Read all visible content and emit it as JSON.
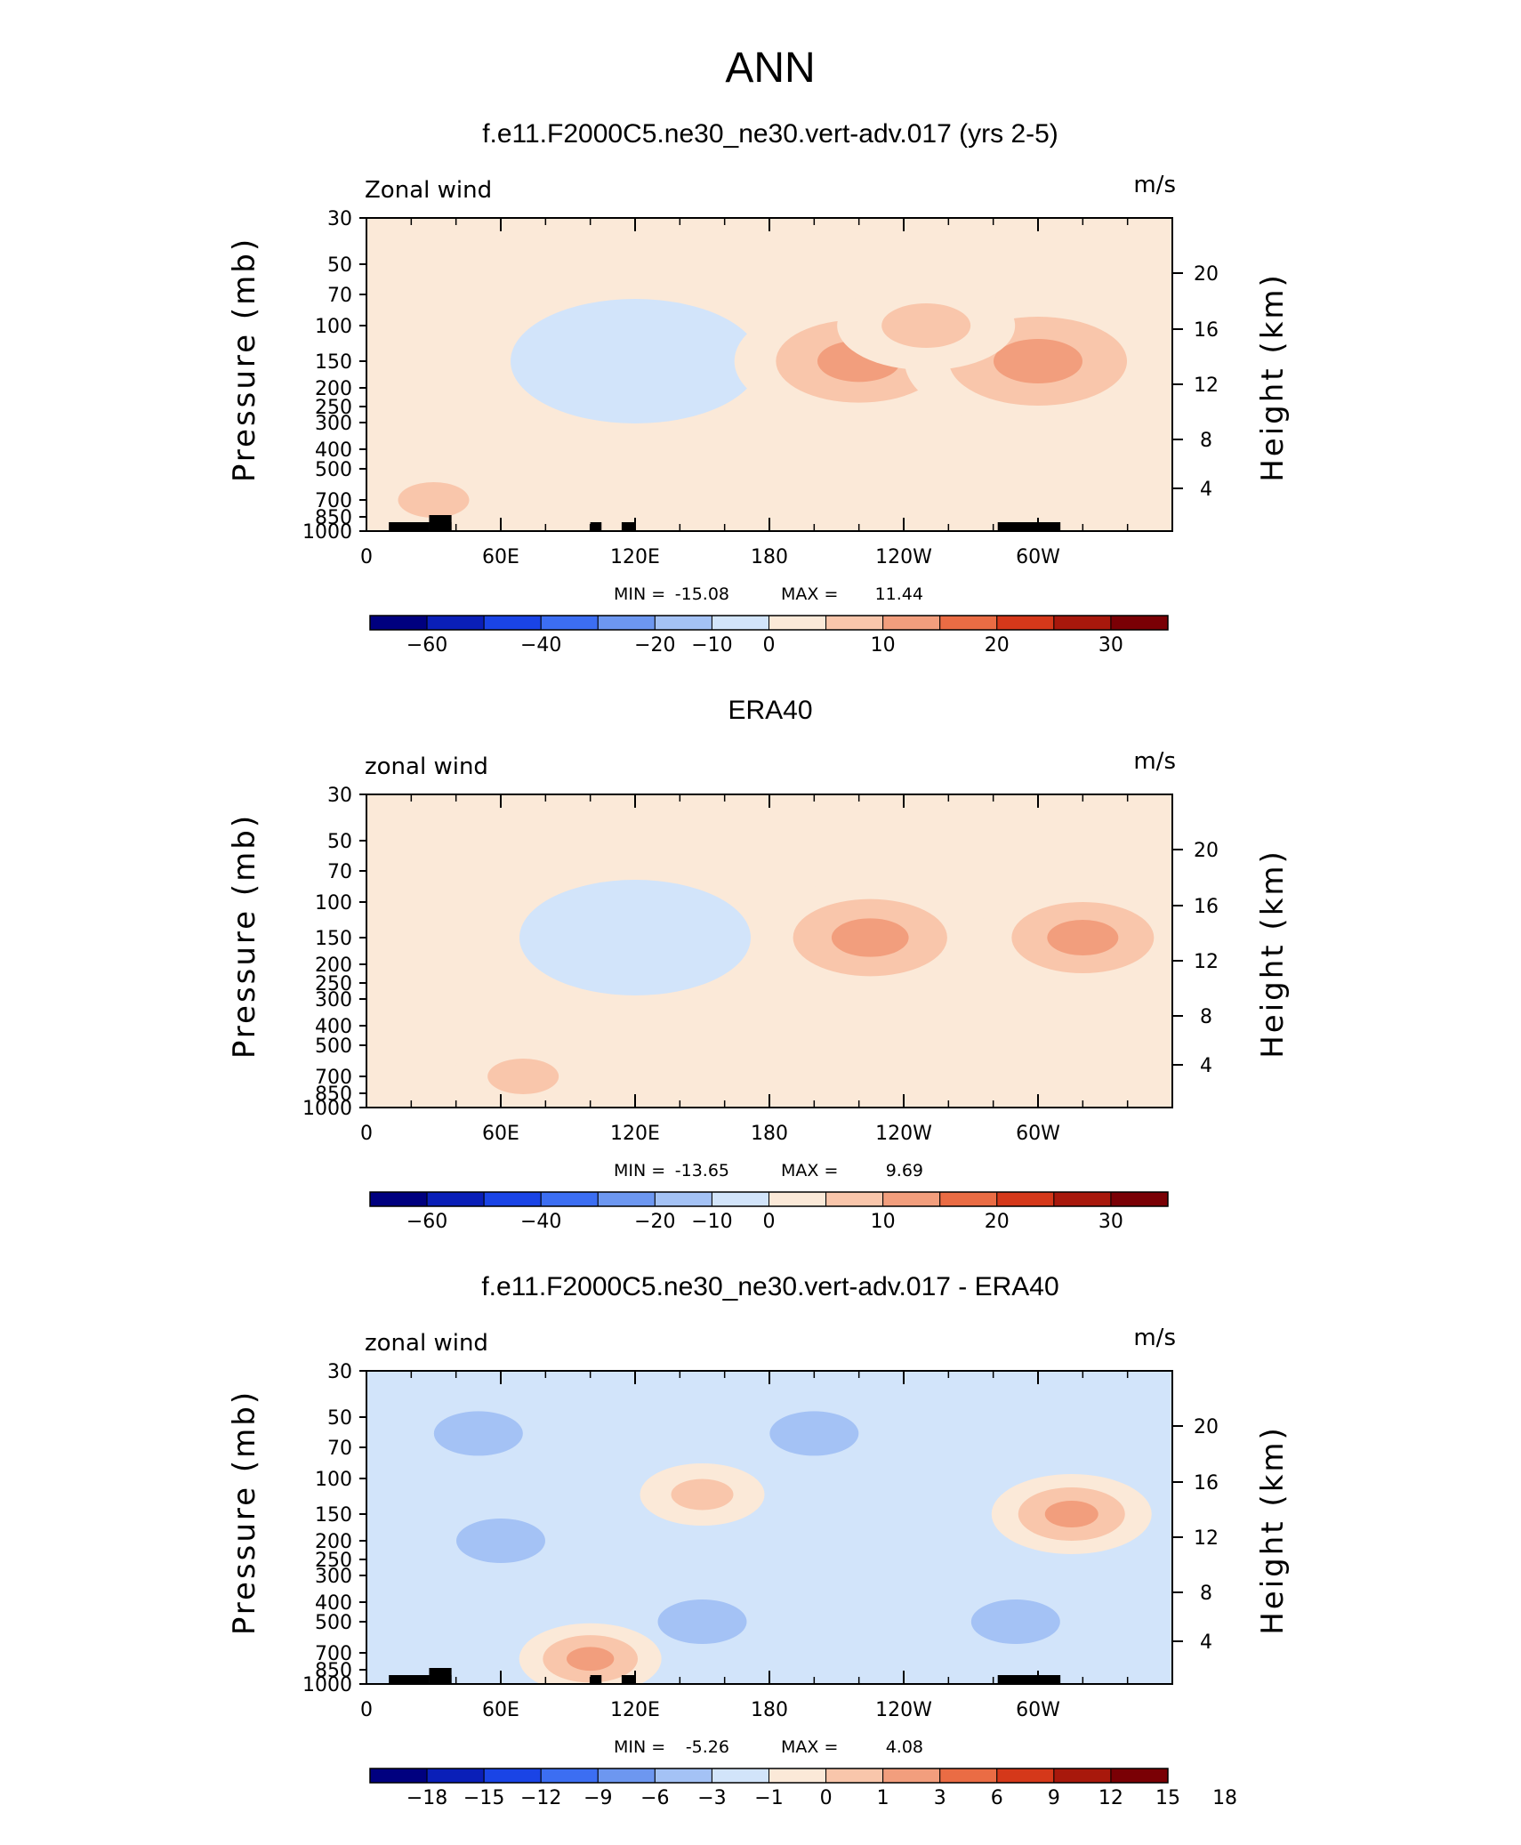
{
  "main_title": "ANN",
  "colors": {
    "diverging": [
      "#00007f",
      "#0a1fb8",
      "#1a44e6",
      "#3c6ef2",
      "#6d97f0",
      "#a4c2f5",
      "#d2e4fa",
      "#fbe9d8",
      "#f9c6ab",
      "#f29e7d",
      "#ea6c44",
      "#d5381a",
      "#a8180c",
      "#7a0005"
    ]
  },
  "chart_data": [
    {
      "type": "heatmap",
      "title": "f.e11.F2000C5.ne30_ne30.vert-adv.017 (yrs 2-5)",
      "left_label": "Zonal wind",
      "right_label": "m/s",
      "ylabel": "Pressure (mb)",
      "y2label": "Height (km)",
      "x_ticks": [
        "0",
        "60E",
        "120E",
        "180",
        "120W",
        "60W"
      ],
      "y_ticks": [
        "30",
        "50",
        "70",
        "100",
        "150",
        "200",
        "250",
        "300",
        "400",
        "500",
        "700",
        "850",
        "1000"
      ],
      "y2_ticks": [
        "20",
        "16",
        "12",
        "8",
        "4"
      ],
      "stats": {
        "min_label": "MIN =",
        "min": "-15.08",
        "max_label": "MAX =",
        "max": "11.44"
      },
      "colorbar_labels": [
        "−60",
        "−40",
        "−20",
        "−10",
        "0",
        "10",
        "20",
        "30"
      ],
      "features": [
        {
          "x": 120,
          "p": 150,
          "value": -8
        },
        {
          "x": 220,
          "p": 150,
          "value": 8
        },
        {
          "x": 300,
          "p": 150,
          "value": 9
        },
        {
          "x": 250,
          "p": 100,
          "value": 4
        },
        {
          "x": 30,
          "p": 700,
          "value": 2
        }
      ]
    },
    {
      "type": "heatmap",
      "title": "ERA40",
      "left_label": "zonal wind",
      "right_label": "m/s",
      "ylabel": "Pressure (mb)",
      "y2label": "Height (km)",
      "x_ticks": [
        "0",
        "60E",
        "120E",
        "180",
        "120W",
        "60W"
      ],
      "y_ticks": [
        "30",
        "50",
        "70",
        "100",
        "150",
        "200",
        "250",
        "300",
        "400",
        "500",
        "700",
        "850",
        "1000"
      ],
      "y2_ticks": [
        "20",
        "16",
        "12",
        "8",
        "4"
      ],
      "stats": {
        "min_label": "MIN =",
        "min": "-13.65",
        "max_label": "MAX =",
        "max": "9.69"
      },
      "colorbar_labels": [
        "−60",
        "−40",
        "−20",
        "−10",
        "0",
        "10",
        "20",
        "30"
      ],
      "features": [
        {
          "x": 120,
          "p": 150,
          "value": -7
        },
        {
          "x": 225,
          "p": 150,
          "value": 7
        },
        {
          "x": 320,
          "p": 150,
          "value": 6
        },
        {
          "x": 70,
          "p": 700,
          "value": 2
        }
      ]
    },
    {
      "type": "heatmap",
      "title": "f.e11.F2000C5.ne30_ne30.vert-adv.017 - ERA40",
      "left_label": "zonal wind",
      "right_label": "m/s",
      "ylabel": "Pressure (mb)",
      "y2label": "Height (km)",
      "x_ticks": [
        "0",
        "60E",
        "120E",
        "180",
        "120W",
        "60W"
      ],
      "y_ticks": [
        "30",
        "50",
        "70",
        "100",
        "150",
        "200",
        "250",
        "300",
        "400",
        "500",
        "700",
        "850",
        "1000"
      ],
      "y2_ticks": [
        "20",
        "16",
        "12",
        "8",
        "4"
      ],
      "stats": {
        "min_label": "MIN =",
        "min": "-5.26",
        "max_label": "MAX =",
        "max": "4.08"
      },
      "colorbar_labels": [
        "−18",
        "−15",
        "−12",
        "−9",
        "−6",
        "−3",
        "−1",
        "0",
        "1",
        "3",
        "6",
        "9",
        "12",
        "15",
        "18"
      ],
      "features": [
        {
          "x": 200,
          "p": 60,
          "value": -4
        },
        {
          "x": 50,
          "p": 60,
          "value": -4
        },
        {
          "x": 60,
          "p": 200,
          "value": -4
        },
        {
          "x": 150,
          "p": 500,
          "value": -4
        },
        {
          "x": 290,
          "p": 500,
          "value": -4
        },
        {
          "x": 315,
          "p": 150,
          "value": 3
        },
        {
          "x": 150,
          "p": 120,
          "value": 1
        },
        {
          "x": 100,
          "p": 750,
          "value": 2
        }
      ]
    }
  ]
}
